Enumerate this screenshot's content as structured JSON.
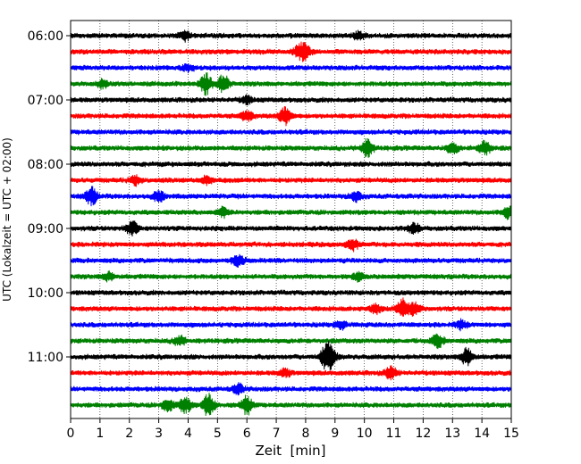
{
  "chart_data": {
    "type": "line",
    "title": "",
    "xlabel": "Zeit  [min]",
    "ylabel": "UTC (Lokalzeit = UTC + 02:00)",
    "xlim": [
      0,
      15
    ],
    "x_ticks": [
      "0",
      "1",
      "2",
      "3",
      "4",
      "5",
      "6",
      "7",
      "8",
      "9",
      "10",
      "11",
      "12",
      "13",
      "14",
      "15"
    ],
    "y_ticks": [
      "06:00",
      "07:00",
      "08:00",
      "09:00",
      "10:00",
      "11:00"
    ],
    "grid": "vertical dotted",
    "legend": "none",
    "trace_colors": [
      "#000000",
      "#ff0000",
      "#0000ff",
      "#008000"
    ],
    "series": [
      {
        "start": "06:00",
        "color": "#000000",
        "events": [
          [
            3.9,
            1.2
          ],
          [
            9.8,
            1.0
          ]
        ]
      },
      {
        "start": "06:15",
        "color": "#ff0000",
        "events": [
          [
            7.8,
            1.6
          ],
          [
            8.0,
            1.3
          ]
        ]
      },
      {
        "start": "06:30",
        "color": "#0000ff",
        "events": [
          [
            4.0,
            0.9
          ]
        ]
      },
      {
        "start": "06:45",
        "color": "#008000",
        "events": [
          [
            4.6,
            2.6
          ],
          [
            5.2,
            2.2
          ],
          [
            1.1,
            1.0
          ]
        ]
      },
      {
        "start": "07:00",
        "color": "#000000",
        "events": [
          [
            6.0,
            0.9
          ]
        ]
      },
      {
        "start": "07:15",
        "color": "#ff0000",
        "events": [
          [
            7.3,
            2.2
          ],
          [
            6.0,
            1.3
          ]
        ]
      },
      {
        "start": "07:30",
        "color": "#0000ff",
        "events": []
      },
      {
        "start": "07:45",
        "color": "#008000",
        "events": [
          [
            10.1,
            2.2
          ],
          [
            14.1,
            1.8
          ],
          [
            13.0,
            1.3
          ]
        ]
      },
      {
        "start": "08:00",
        "color": "#000000",
        "events": []
      },
      {
        "start": "08:15",
        "color": "#ff0000",
        "events": [
          [
            2.2,
            1.1
          ],
          [
            4.6,
            1.0
          ]
        ]
      },
      {
        "start": "08:30",
        "color": "#0000ff",
        "events": [
          [
            0.7,
            2.2
          ],
          [
            3.0,
            1.3
          ],
          [
            9.7,
            1.2
          ]
        ]
      },
      {
        "start": "08:45",
        "color": "#008000",
        "events": [
          [
            5.2,
            1.2
          ],
          [
            14.9,
            1.4
          ]
        ]
      },
      {
        "start": "09:00",
        "color": "#000000",
        "events": [
          [
            2.1,
            1.8
          ],
          [
            11.7,
            1.2
          ]
        ]
      },
      {
        "start": "09:15",
        "color": "#ff0000",
        "events": [
          [
            9.6,
            1.5
          ]
        ]
      },
      {
        "start": "09:30",
        "color": "#0000ff",
        "events": [
          [
            5.7,
            1.3
          ]
        ]
      },
      {
        "start": "09:45",
        "color": "#008000",
        "events": [
          [
            1.3,
            1.0
          ],
          [
            9.8,
            1.0
          ]
        ]
      },
      {
        "start": "10:00",
        "color": "#000000",
        "events": []
      },
      {
        "start": "10:15",
        "color": "#ff0000",
        "events": [
          [
            11.3,
            2.4
          ],
          [
            11.7,
            1.6
          ],
          [
            10.4,
            1.1
          ]
        ]
      },
      {
        "start": "10:30",
        "color": "#0000ff",
        "events": [
          [
            9.2,
            1.0
          ],
          [
            13.3,
            1.0
          ]
        ]
      },
      {
        "start": "10:45",
        "color": "#008000",
        "events": [
          [
            3.7,
            1.2
          ],
          [
            12.5,
            1.6
          ]
        ]
      },
      {
        "start": "11:00",
        "color": "#000000",
        "events": [
          [
            8.7,
            3.0
          ],
          [
            13.5,
            2.2
          ],
          [
            8.9,
            1.6
          ]
        ]
      },
      {
        "start": "11:15",
        "color": "#ff0000",
        "events": [
          [
            10.9,
            1.6
          ],
          [
            7.3,
            1.0
          ]
        ]
      },
      {
        "start": "11:30",
        "color": "#0000ff",
        "events": [
          [
            5.7,
            1.2
          ]
        ]
      },
      {
        "start": "11:45",
        "color": "#008000",
        "events": [
          [
            3.3,
            1.6
          ],
          [
            3.9,
            2.0
          ],
          [
            4.7,
            3.0
          ],
          [
            6.0,
            2.2
          ]
        ]
      }
    ]
  }
}
